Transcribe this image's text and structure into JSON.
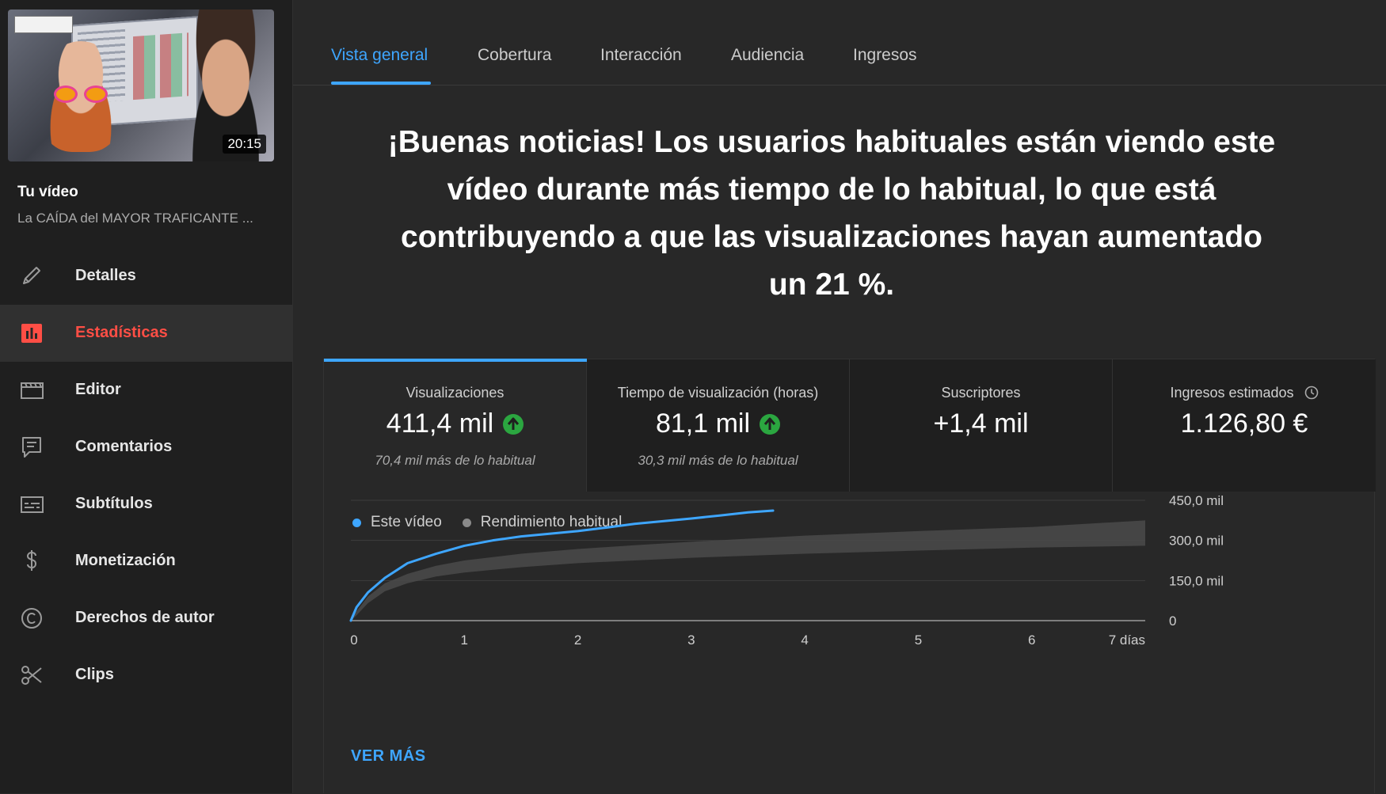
{
  "sidebar": {
    "thumbnail_duration": "20:15",
    "your_video_label": "Tu vídeo",
    "video_title": "La CAÍDA del MAYOR TRAFICANTE ...",
    "nav_items": [
      {
        "label": "Detalles",
        "icon": "pencil-icon"
      },
      {
        "label": "Estadísticas",
        "icon": "bar-chart-icon"
      },
      {
        "label": "Editor",
        "icon": "clapperboard-icon"
      },
      {
        "label": "Comentarios",
        "icon": "comment-icon"
      },
      {
        "label": "Subtítulos",
        "icon": "subtitles-icon"
      },
      {
        "label": "Monetización",
        "icon": "dollar-icon"
      },
      {
        "label": "Derechos de autor",
        "icon": "copyright-icon"
      },
      {
        "label": "Clips",
        "icon": "scissors-icon"
      }
    ],
    "active_index": 1
  },
  "tabs": [
    {
      "label": "Vista general",
      "active": true
    },
    {
      "label": "Cobertura",
      "active": false
    },
    {
      "label": "Interacción",
      "active": false
    },
    {
      "label": "Audiencia",
      "active": false
    },
    {
      "label": "Ingresos",
      "active": false
    }
  ],
  "headline": "¡Buenas noticias! Los usuarios habituales están viendo este vídeo durante más tiempo de lo habitual, lo que está contribuyendo a que las visualizaciones hayan aumentado un 21 %.",
  "metrics": [
    {
      "label": "Visualizaciones",
      "value": "411,4 mil",
      "trend": "up",
      "sub": "70,4 mil más de lo habitual"
    },
    {
      "label": "Tiempo de visualización (horas)",
      "value": "81,1 mil",
      "trend": "up",
      "sub": "30,3 mil más de lo habitual"
    },
    {
      "label": "Suscriptores",
      "value": "+1,4 mil",
      "trend": null,
      "sub": ""
    },
    {
      "label": "Ingresos estimados",
      "value": "1.126,80 €",
      "trend": null,
      "sub": "",
      "icon": "clock-icon"
    }
  ],
  "legend": {
    "this_video": "Este vídeo",
    "typical": "Rendimiento habitual"
  },
  "ver_mas": "VER MÁS",
  "colors": {
    "accent": "#3ea6ff",
    "active_nav": "#ff4e45",
    "trend_up": "#2ba640",
    "typical_band": "#4a4a4a"
  },
  "chart_data": {
    "type": "line",
    "title": "",
    "xlabel": "",
    "ylabel": "",
    "x_ticks": [
      "0",
      "1",
      "2",
      "3",
      "4",
      "5",
      "6",
      "7 días"
    ],
    "y_ticks": [
      "0",
      "150,0 mil",
      "300,0 mil",
      "450,0 mil"
    ],
    "xlim": [
      0,
      7
    ],
    "ylim": [
      0,
      450000
    ],
    "series": [
      {
        "name": "Este vídeo",
        "color": "#3ea6ff",
        "x": [
          0,
          0.05,
          0.15,
          0.3,
          0.5,
          0.75,
          1.0,
          1.25,
          1.5,
          1.75,
          2.0,
          2.25,
          2.5,
          2.75,
          3.0,
          3.25,
          3.5,
          3.72
        ],
        "y": [
          0,
          50000,
          105000,
          160000,
          215000,
          250000,
          280000,
          300000,
          315000,
          325000,
          335000,
          348000,
          362000,
          372000,
          382000,
          393000,
          405000,
          411400
        ]
      }
    ],
    "typical_band": {
      "name": "Rendimiento habitual",
      "x": [
        0,
        0.05,
        0.15,
        0.3,
        0.5,
        0.75,
        1.0,
        1.5,
        2.0,
        2.5,
        3.0,
        4.0,
        5.0,
        6.0,
        7.0
      ],
      "low": [
        0,
        20000,
        65000,
        110000,
        140000,
        165000,
        180000,
        200000,
        215000,
        225000,
        235000,
        250000,
        262000,
        273000,
        280000
      ],
      "high": [
        0,
        35000,
        90000,
        140000,
        175000,
        205000,
        225000,
        250000,
        268000,
        282000,
        295000,
        318000,
        335000,
        350000,
        375000
      ]
    }
  }
}
